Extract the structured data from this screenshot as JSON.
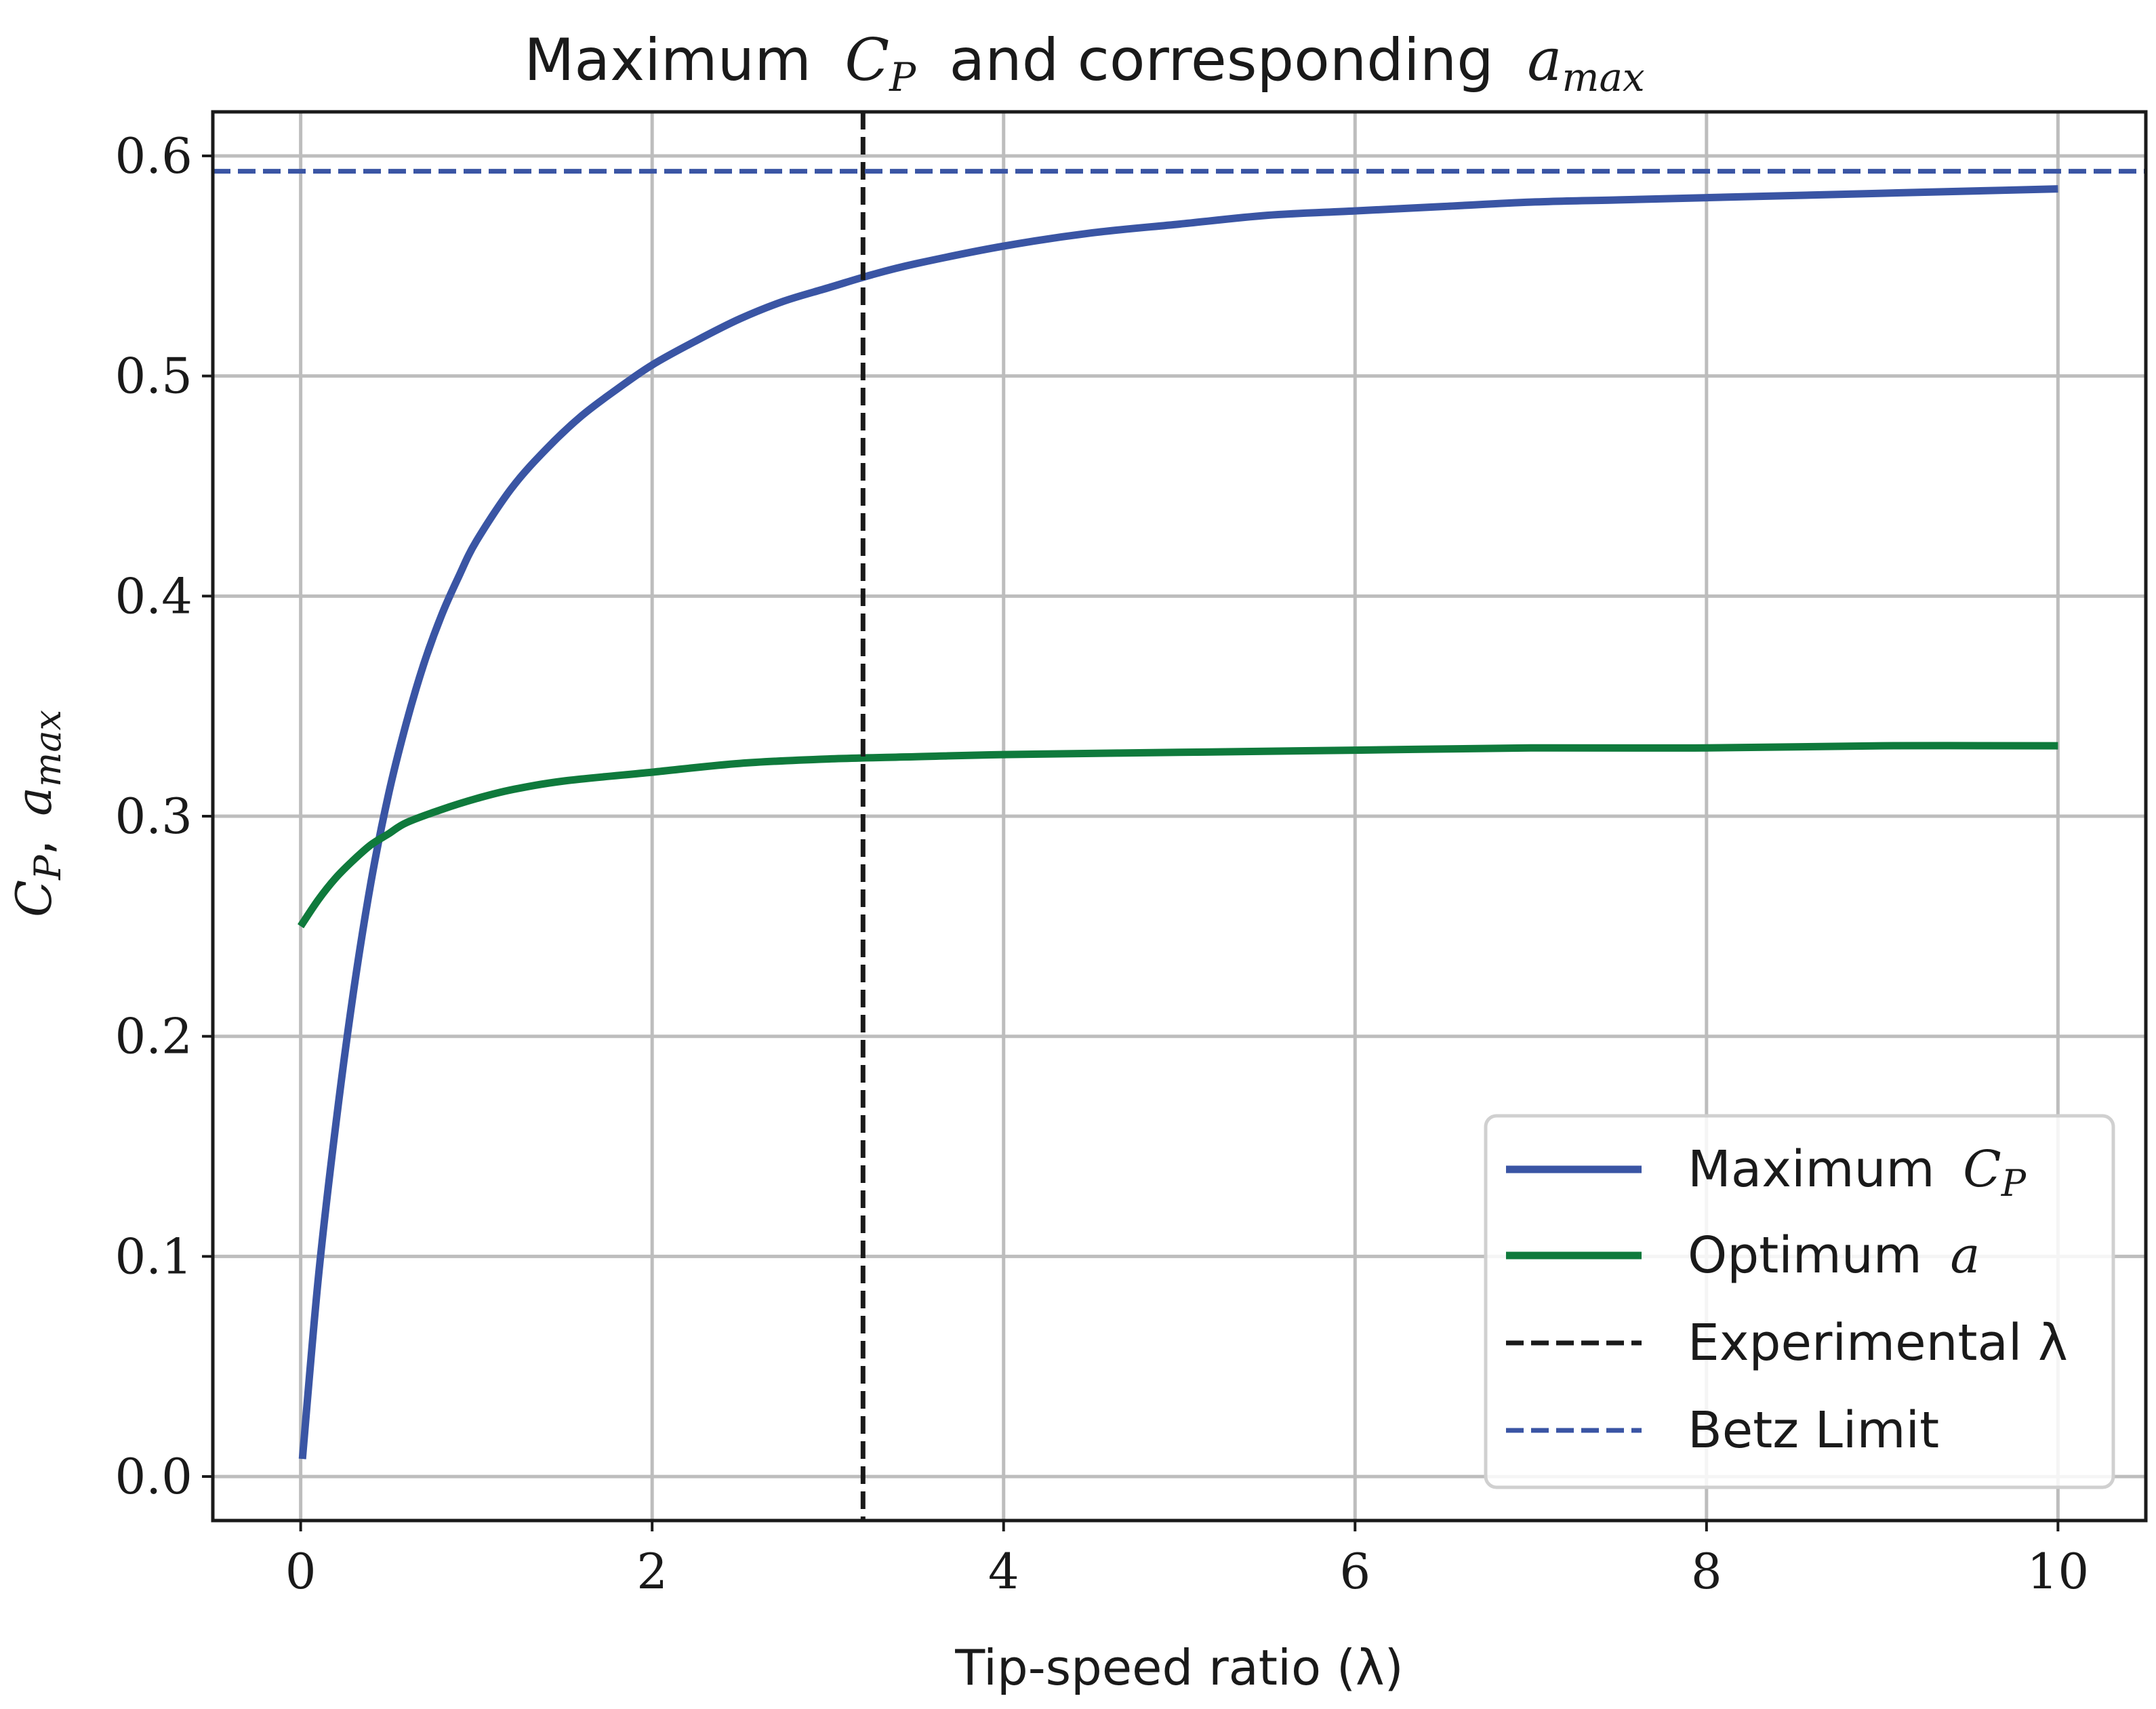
{
  "chart_data": {
    "type": "line",
    "title_prefix": "Maximum",
    "title_cp_var": "C",
    "title_cp_sub": "P",
    "title_middle": "and corresponding",
    "title_a_var": "a",
    "title_a_sub": "max",
    "xlabel": "Tip-speed ratio (λ)",
    "ylabel_cp_var": "C",
    "ylabel_cp_sub": "P",
    "ylabel_sep": ",",
    "ylabel_a_var": "a",
    "ylabel_a_sub": "max",
    "xlim": [
      -0.5,
      10.5
    ],
    "ylim": [
      -0.02,
      0.62
    ],
    "x_ticks": [
      0,
      2,
      4,
      6,
      8,
      10
    ],
    "x_tick_labels": [
      "0",
      "2",
      "4",
      "6",
      "8",
      "10"
    ],
    "y_ticks": [
      0.0,
      0.1,
      0.2,
      0.3,
      0.4,
      0.5,
      0.6
    ],
    "y_tick_labels": [
      "0.0",
      "0.1",
      "0.2",
      "0.3",
      "0.4",
      "0.5",
      "0.6"
    ],
    "grid": true,
    "legend_position": "lower-right",
    "series": [
      {
        "name": "Maximum C_P",
        "legend_text": "Maximum",
        "legend_var": "C",
        "legend_sub": "P",
        "color": "#3a55a4",
        "style": "solid",
        "x": [
          0.01,
          0.1,
          0.2,
          0.3,
          0.4,
          0.5,
          0.6,
          0.7,
          0.8,
          0.9,
          1.0,
          1.2,
          1.4,
          1.6,
          1.8,
          2.0,
          2.25,
          2.5,
          2.75,
          3.0,
          3.25,
          3.5,
          4.0,
          4.5,
          5.0,
          5.5,
          6.0,
          6.5,
          7.0,
          7.5,
          8.0,
          8.5,
          9.0,
          9.5,
          10.0
        ],
        "values": [
          0.008,
          0.09,
          0.16,
          0.22,
          0.27,
          0.31,
          0.342,
          0.369,
          0.391,
          0.409,
          0.425,
          0.449,
          0.467,
          0.482,
          0.494,
          0.505,
          0.516,
          0.526,
          0.534,
          0.54,
          0.546,
          0.551,
          0.559,
          0.565,
          0.569,
          0.573,
          0.575,
          0.577,
          0.579,
          0.58,
          0.581,
          0.582,
          0.583,
          0.584,
          0.585
        ]
      },
      {
        "name": "Optimum a",
        "legend_text": "Optimum",
        "legend_var": "a",
        "legend_sub": "",
        "color": "#0f7a3c",
        "style": "solid",
        "x": [
          0.0,
          0.1,
          0.2,
          0.3,
          0.4,
          0.5,
          0.6,
          0.8,
          1.0,
          1.2,
          1.5,
          2.0,
          2.5,
          3.0,
          3.5,
          4.0,
          5.0,
          6.0,
          7.0,
          8.0,
          9.0,
          10.0
        ],
        "values": [
          0.25,
          0.262,
          0.272,
          0.28,
          0.287,
          0.292,
          0.297,
          0.303,
          0.308,
          0.312,
          0.316,
          0.32,
          0.324,
          0.326,
          0.327,
          0.328,
          0.329,
          0.33,
          0.331,
          0.331,
          0.332,
          0.332
        ]
      },
      {
        "name": "Experimental λ",
        "legend_text": "Experimental λ",
        "legend_var": "",
        "legend_sub": "",
        "color": "#1a1a1a",
        "style": "dashed",
        "orientation": "vertical",
        "value": 3.2
      },
      {
        "name": "Betz Limit",
        "legend_text": "Betz Limit",
        "legend_var": "",
        "legend_sub": "",
        "color": "#3a55a4",
        "style": "dashed",
        "orientation": "horizontal",
        "value": 0.593
      }
    ]
  }
}
